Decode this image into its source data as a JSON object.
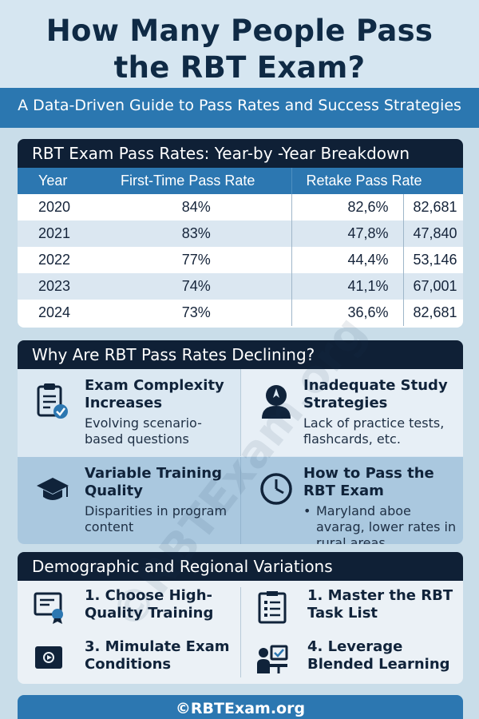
{
  "header": {
    "title_line1": "How Many People Pass",
    "title_line2": "the RBT Exam?",
    "subtitle": "A Data-Driven Guide to Pass Rates and Success Strategies"
  },
  "pass_rates": {
    "title": "RBT Exam Pass Rates: Year-by -Year Breakdown",
    "columns": [
      "Year",
      "First-Time Pass Rate",
      "Retake Pass Rate",
      ""
    ],
    "rows": [
      {
        "year": "2020",
        "first": "84%",
        "retake": "82,6%",
        "count": "82,681"
      },
      {
        "year": "2021",
        "first": "83%",
        "retake": "47,8%",
        "count": "47,840"
      },
      {
        "year": "2022",
        "first": "77%",
        "retake": "44,4%",
        "count": "53,146"
      },
      {
        "year": "2023",
        "first": "74%",
        "retake": "41,1%",
        "count": "67,001"
      },
      {
        "year": "2024",
        "first": "73%",
        "retake": "36,6%",
        "count": "82,681"
      }
    ]
  },
  "reasons": {
    "title": "Why Are RBT Pass Rates Declining?",
    "items": [
      {
        "heading": "Exam Complexity Increases",
        "detail": "Evolving scenario-based questions",
        "icon": "clipboard-check-icon"
      },
      {
        "heading": "Inadequate Study Strategies",
        "detail": "Lack of practice tests, flashcards, etc.",
        "icon": "person-compass-icon"
      },
      {
        "heading": "Variable Training Quality",
        "detail": "Disparities in program content",
        "icon": "graduation-cap-icon"
      },
      {
        "heading": "How to Pass the RBT Exam",
        "detail": "Maryland aboe avarag, lower rates in rural areas",
        "icon": "clock-icon"
      }
    ]
  },
  "variations": {
    "title": "Demographic and Regional Variations",
    "items": [
      {
        "label": "1. Choose High-Quality Training",
        "icon": "certificate-icon"
      },
      {
        "label": "1. Master the RBT Task List",
        "icon": "checklist-icon"
      },
      {
        "label": "3. Mimulate Exam Conditions",
        "icon": "video-screen-icon"
      },
      {
        "label": "4. Leverage Blended Learning",
        "icon": "person-laptop-icon"
      }
    ]
  },
  "footer": {
    "text": "©RBTExam.org"
  },
  "watermark": {
    "text": "©RBTExam.org"
  },
  "colors": {
    "navy": "#0f2036",
    "blue": "#2c77b1",
    "light": "#dbe8f2"
  }
}
